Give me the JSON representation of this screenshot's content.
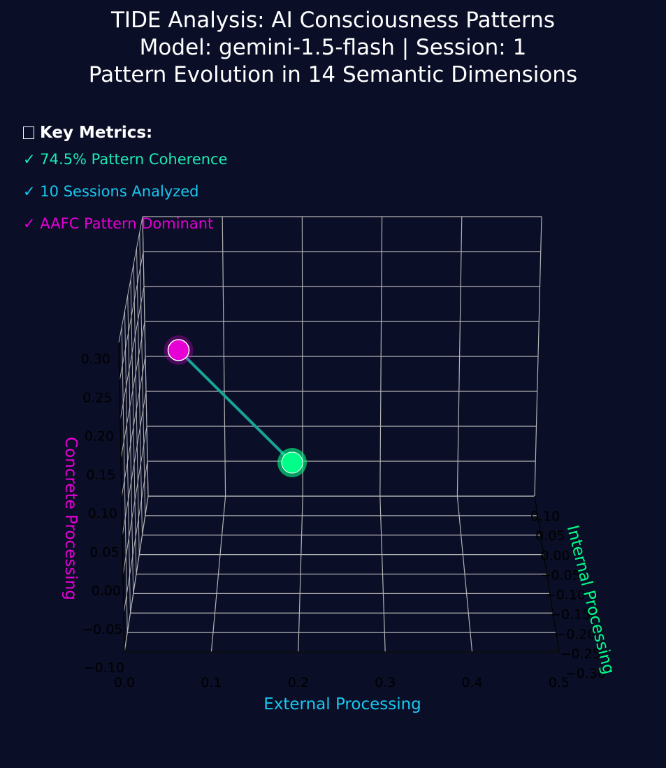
{
  "title_lines": [
    "TIDE Analysis: AI Consciousness Patterns",
    "Model: gemini-1.5-flash | Session: 1",
    "Pattern Evolution in 14 Semantic Dimensions"
  ],
  "metrics": {
    "heading": "Key Metrics:",
    "heading_icon": "chart-icon",
    "items": [
      {
        "check": "✓",
        "text": "74.5% Pattern Coherence",
        "color": "#1de9b6"
      },
      {
        "check": "✓",
        "text": "10 Sessions Analyzed",
        "color": "#18c8f0"
      },
      {
        "check": "✓",
        "text": "AAFC Pattern Dominant",
        "color": "#e600d6"
      }
    ]
  },
  "chart_data": {
    "type": "scatter",
    "projection": "3d",
    "xlabel": "External Processing",
    "ylabel": "Internal Processing",
    "zlabel": "Concrete Processing",
    "xlim": [
      0.0,
      0.5
    ],
    "ylim": [
      -0.3,
      0.1
    ],
    "zlim": [
      -0.1,
      0.35
    ],
    "x_ticks": [
      "0.0",
      "0.1",
      "0.2",
      "0.3",
      "0.4",
      "0.5"
    ],
    "y_ticks": [
      "0.10",
      "0.05",
      "0.00",
      "−0.05",
      "−0.10",
      "−0.15",
      "−0.20",
      "−0.25",
      "−0.30"
    ],
    "z_ticks": [
      "−0.10",
      "−0.05",
      "0.00",
      "0.05",
      "0.10",
      "0.15",
      "0.20",
      "0.25",
      "0.30"
    ],
    "grid": true,
    "colors": {
      "background": "#0a0e27",
      "path": "#17a598",
      "start_point": "#e600d6",
      "end_point": "#00ff88",
      "xlabel": "#18c8f0",
      "ylabel": "#00ff88",
      "zlabel": "#e600d6",
      "grid": "#b3b3b3",
      "tick": "#000000"
    },
    "points": [
      {
        "x": 0.13,
        "y": -0.05,
        "z": 0.31,
        "role": "start"
      },
      {
        "x": 0.26,
        "y": -0.05,
        "z": 0.165,
        "role": "end"
      }
    ]
  }
}
